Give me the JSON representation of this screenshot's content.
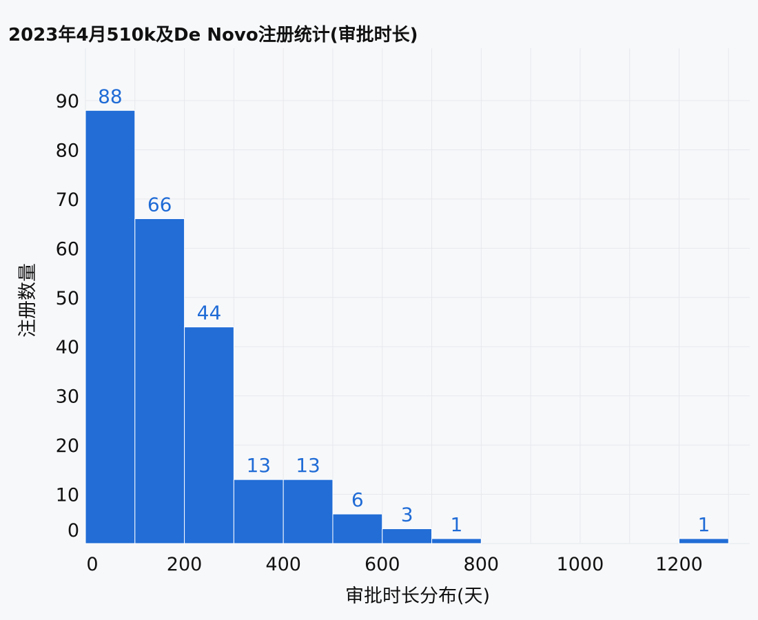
{
  "chart_data": {
    "type": "bar",
    "title": "2023年4月510k及De Novo注册统计(审批时长)",
    "xlabel": "审批时长分布(天)",
    "ylabel": "注册数量",
    "bins": [
      {
        "start": 0,
        "end": 100,
        "value": 88
      },
      {
        "start": 100,
        "end": 200,
        "value": 66
      },
      {
        "start": 200,
        "end": 300,
        "value": 44
      },
      {
        "start": 300,
        "end": 400,
        "value": 13
      },
      {
        "start": 400,
        "end": 500,
        "value": 13
      },
      {
        "start": 500,
        "end": 600,
        "value": 6
      },
      {
        "start": 600,
        "end": 700,
        "value": 3
      },
      {
        "start": 700,
        "end": 800,
        "value": 1
      },
      {
        "start": 1200,
        "end": 1300,
        "value": 1
      }
    ],
    "xticks": [
      0,
      200,
      400,
      600,
      800,
      1000,
      1200
    ],
    "yticks": [
      0,
      10,
      20,
      30,
      40,
      50,
      60,
      70,
      80,
      90
    ],
    "xlim": [
      0,
      1340
    ],
    "ylim": [
      0,
      96
    ],
    "grid": true,
    "bar_color": "#226dd6",
    "label_color": "#1f6bd6"
  }
}
